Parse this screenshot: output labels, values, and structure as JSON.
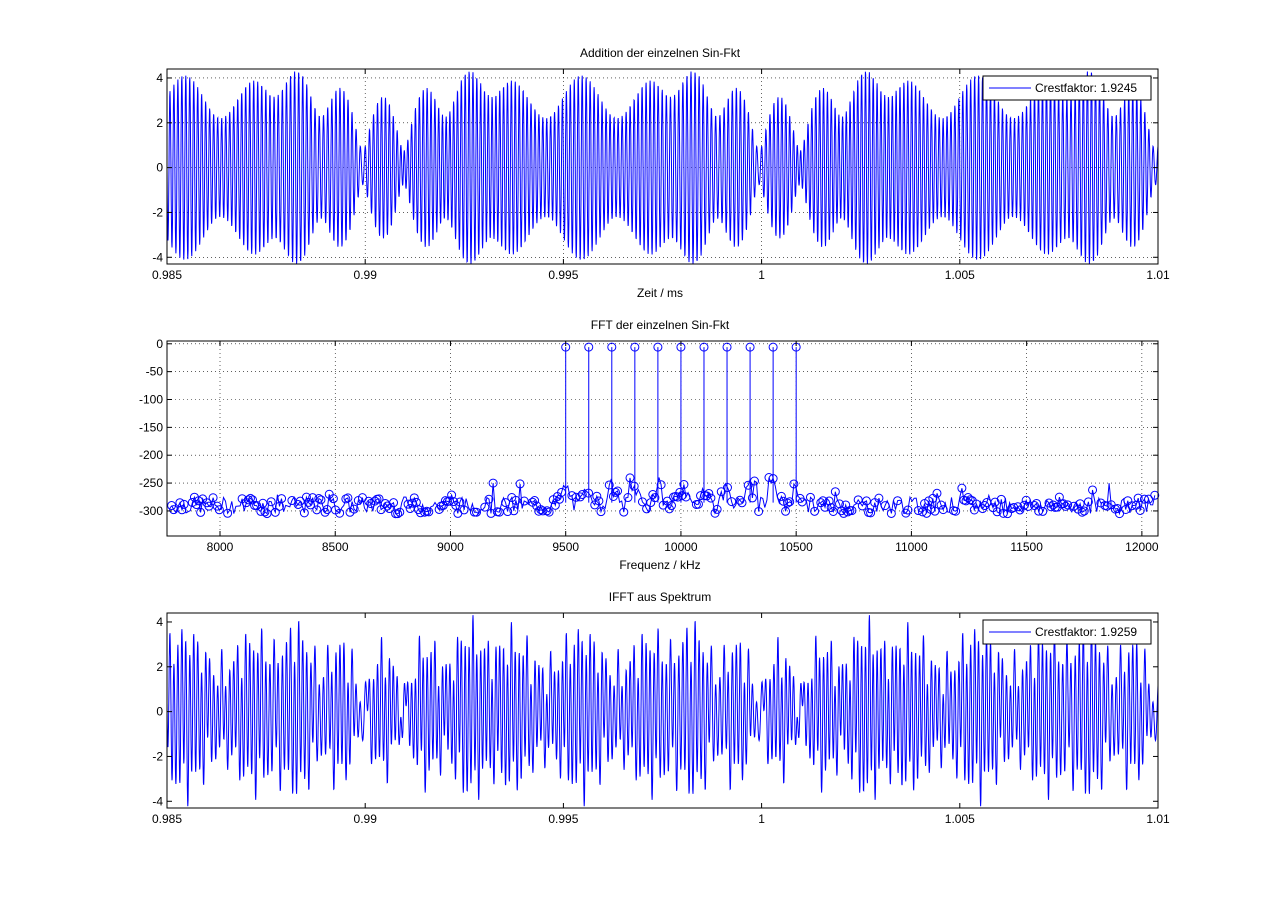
{
  "figure": {
    "background": "#ffffff",
    "line_color": "#0000ff"
  },
  "chart_data": [
    {
      "type": "line",
      "title": "Addition der einzelnen Sin-Fkt",
      "xlabel": "Zeit / ms",
      "ylabel": "",
      "xlim": [
        0.985,
        1.01
      ],
      "ylim": [
        -4.3,
        4.4
      ],
      "xticks": [
        0.985,
        0.99,
        0.995,
        1.0,
        1.005,
        1.01
      ],
      "xtick_labels": [
        "0.985",
        "0.99",
        "0.995",
        "1",
        "1.005",
        "1.01"
      ],
      "yticks": [
        -4,
        -2,
        0,
        2,
        4
      ],
      "ytick_labels": [
        "-4",
        "-2",
        "0",
        "2",
        "4"
      ],
      "grid": true,
      "legend": {
        "location": "top-right",
        "entries": [
          "Crestfaktor: 1.9245"
        ]
      },
      "series": [
        {
          "name": "Crestfaktor: 1.9245",
          "signal": "sum of 11 sinusoids",
          "frequencies_khz": [
            9500,
            9600,
            9700,
            9800,
            9900,
            10000,
            10100,
            10200,
            10300,
            10400,
            10500
          ],
          "peak": 4.3,
          "envelope_period_ms": 0.01
        }
      ]
    },
    {
      "type": "stem",
      "title": "FFT der einzelnen Sin-Fkt",
      "xlabel": "Frequenz / kHz",
      "ylabel": "",
      "xlim": [
        7770,
        12070
      ],
      "ylim": [
        -345,
        5
      ],
      "xticks": [
        8000,
        8500,
        9000,
        9500,
        10000,
        10500,
        11000,
        11500,
        12000
      ],
      "xtick_labels": [
        "8000",
        "8500",
        "9000",
        "9500",
        "10000",
        "10500",
        "11000",
        "11500",
        "12000"
      ],
      "yticks": [
        0,
        -50,
        -100,
        -150,
        -200,
        -250,
        -300
      ],
      "ytick_labels": [
        "0",
        "-50",
        "-100",
        "-150",
        "-200",
        "-250",
        "-300"
      ],
      "grid": true,
      "peaks": {
        "x": [
          9500,
          9600,
          9700,
          9800,
          9900,
          10000,
          10100,
          10200,
          10300,
          10400,
          10500
        ],
        "y": [
          -6,
          -6,
          -6,
          -6,
          -6,
          -6,
          -6,
          -6,
          -6,
          -6,
          -6
        ]
      },
      "noise_floor": {
        "range": [
          -330,
          -240
        ],
        "typical": -290
      }
    },
    {
      "type": "line",
      "title": "IFFT aus Spektrum",
      "xlabel": "",
      "ylabel": "",
      "xlim": [
        0.985,
        1.01
      ],
      "ylim": [
        -4.3,
        4.4
      ],
      "xticks": [
        0.985,
        0.99,
        0.995,
        1.0,
        1.005,
        1.01
      ],
      "xtick_labels": [
        "0.985",
        "0.99",
        "0.995",
        "1",
        "1.005",
        "1.01"
      ],
      "yticks": [
        -4,
        -2,
        0,
        2,
        4
      ],
      "ytick_labels": [
        "-4",
        "-2",
        "0",
        "2",
        "4"
      ],
      "grid": false,
      "legend": {
        "location": "top-right",
        "entries": [
          "Crestfaktor: 1.9259"
        ]
      },
      "series": [
        {
          "name": "Crestfaktor: 1.9259",
          "signal": "inverse FFT of spectrum",
          "peak": 4.3
        }
      ]
    }
  ]
}
